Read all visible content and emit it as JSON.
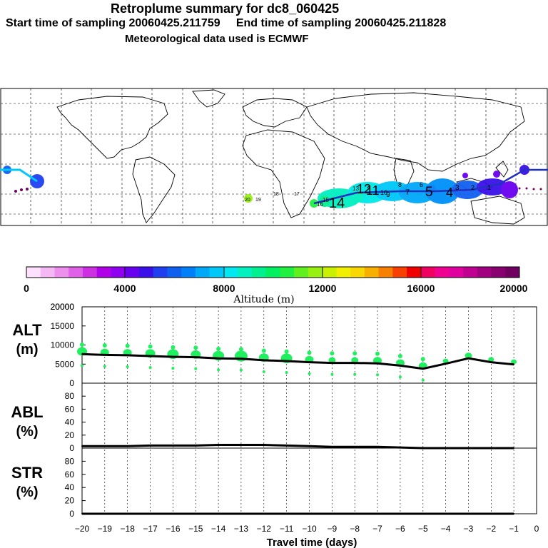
{
  "header": {
    "title": "Retroplume summary for dc8_060425",
    "sampling": "Start time of sampling 20060425.211759     End time of sampling 20060425.211828",
    "met": "Meteorological data used is ECMWF"
  },
  "colorbar": {
    "ticks": [
      "0",
      "4000",
      "8000",
      "12000",
      "16000",
      "20000"
    ],
    "label": "Altitude (m)",
    "colors": [
      "#fce0fc",
      "#f4b8f4",
      "#ec90ec",
      "#e060e8",
      "#cc30e0",
      "#b000e8",
      "#9000f0",
      "#6a00f0",
      "#3a10e8",
      "#2040f0",
      "#1060f0",
      "#0080f8",
      "#00a8f8",
      "#00c8f8",
      "#00e8f0",
      "#00f0c0",
      "#00f090",
      "#00f060",
      "#20f040",
      "#60f020",
      "#98f010",
      "#c8f000",
      "#f0f000",
      "#f8d800",
      "#f8b000",
      "#f88000",
      "#f84000",
      "#f00000",
      "#f00060",
      "#f00090",
      "#e000a0",
      "#c00090",
      "#a00080",
      "#880070",
      "#700060"
    ]
  },
  "chart_data": [
    {
      "type": "line",
      "title": "ALT (m)",
      "ylabel": "ALT\n(m)",
      "ylim": [
        0,
        20000
      ],
      "yticks": [
        0,
        5000,
        10000,
        15000,
        20000
      ],
      "x": [
        -20,
        -19,
        -18,
        -17,
        -16,
        -15,
        -14,
        -13,
        -12,
        -11,
        -10,
        -9,
        -8,
        -7,
        -6,
        -5,
        -4,
        -3,
        -2,
        -1
      ],
      "values": [
        7600,
        7400,
        7300,
        7100,
        6900,
        6800,
        6500,
        6400,
        6000,
        5800,
        5500,
        5300,
        5300,
        5200,
        4600,
        3800,
        5100,
        6500,
        5500,
        4900
      ]
    },
    {
      "type": "line",
      "title": "ABL (%)",
      "ylabel": "ABL\n(%)",
      "ylim": [
        0,
        100
      ],
      "yticks": [
        0,
        20,
        40,
        60,
        80
      ],
      "x": [
        -20,
        -19,
        -18,
        -17,
        -16,
        -15,
        -14,
        -13,
        -12,
        -11,
        -10,
        -9,
        -8,
        -7,
        -6,
        -5,
        -4,
        -3,
        -2,
        -1
      ],
      "values": [
        3,
        3,
        3,
        4,
        4,
        4,
        5,
        5,
        5,
        4,
        3,
        2,
        2,
        2,
        1,
        0,
        0,
        0,
        0,
        0
      ]
    },
    {
      "type": "line",
      "title": "STR (%)",
      "ylabel": "STR\n(%)",
      "ylim": [
        0,
        100
      ],
      "yticks": [
        0,
        20,
        40,
        60,
        80
      ],
      "x": [
        -20,
        -19,
        -18,
        -17,
        -16,
        -15,
        -14,
        -13,
        -12,
        -11,
        -10,
        -9,
        -8,
        -7,
        -6,
        -5,
        -4,
        -3,
        -2,
        -1
      ],
      "values": [
        0,
        0,
        0,
        0,
        0,
        0,
        0,
        0,
        0,
        0,
        0,
        0,
        0,
        0,
        0,
        0,
        0,
        0,
        0,
        0
      ]
    }
  ],
  "xaxis": {
    "ticks": [
      "−20",
      "−19",
      "−18",
      "−17",
      "−16",
      "−15",
      "−14",
      "−13",
      "−12",
      "−11",
      "−10",
      "−9",
      "−8",
      "−7",
      "−6",
      "−5",
      "−4",
      "−3",
      "−2",
      "−1",
      "0"
    ],
    "label": "Travel time (days)"
  },
  "map": {
    "plume_labels": [
      "20",
      "19",
      "18",
      "17",
      "16",
      "15",
      "14",
      "13",
      "12",
      "11",
      "10",
      "9",
      "8",
      "7",
      "6",
      "5",
      "4",
      "3",
      "2",
      "1"
    ]
  }
}
